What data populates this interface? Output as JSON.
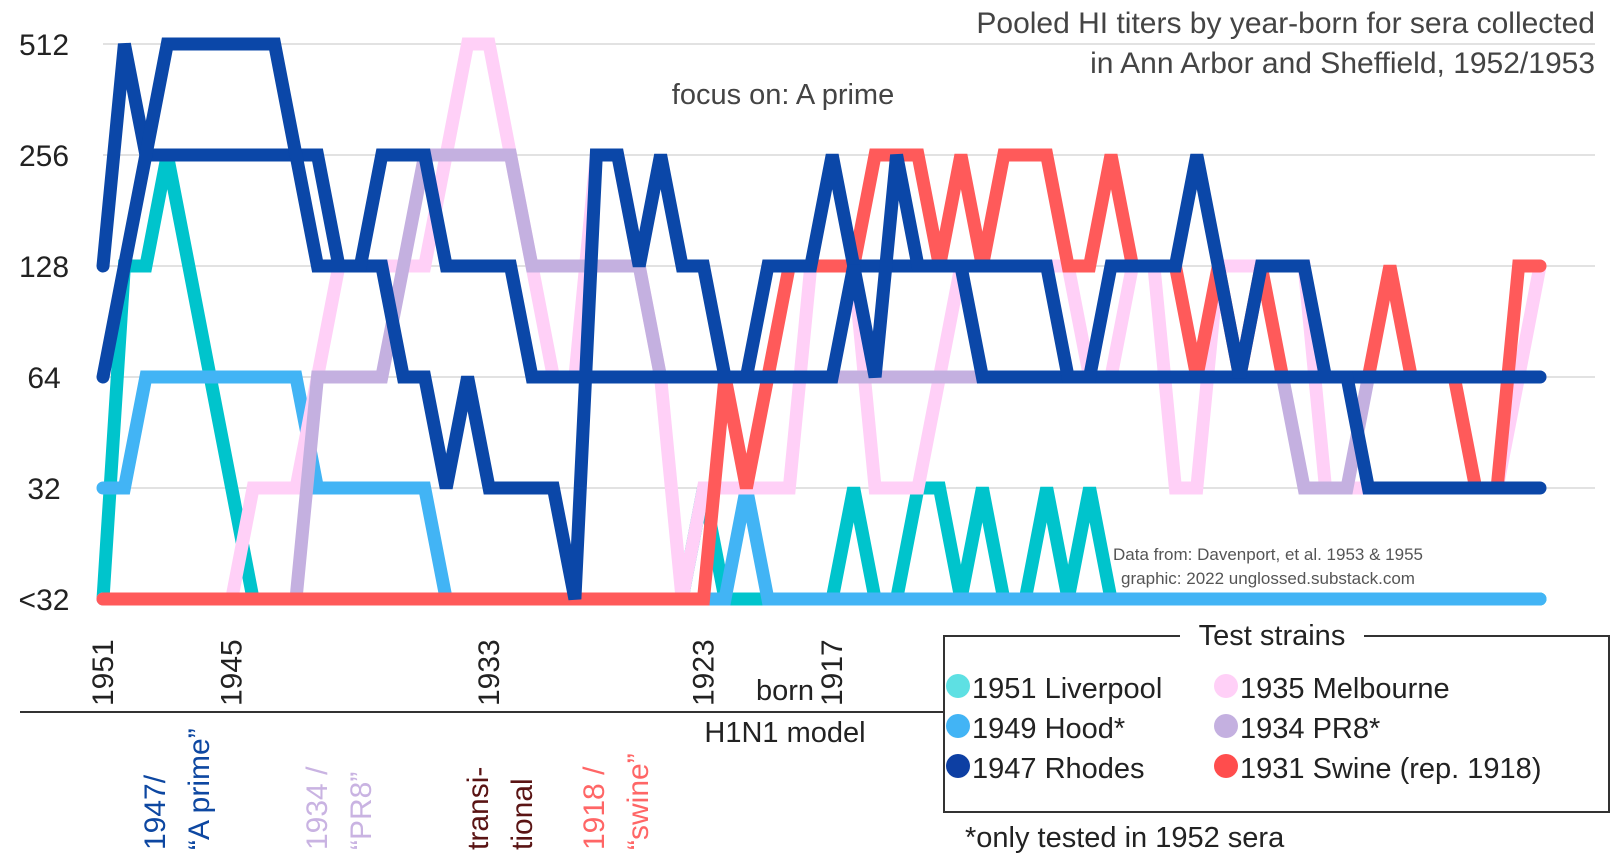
{
  "chart_data": {
    "type": "line",
    "title_lines": [
      "Pooled HI titers by year-born for sera collected",
      "in Ann Arbor and Sheffield, 1952/1953"
    ],
    "subtitle": "focus on: A prime",
    "ylabel": "",
    "xlabel": "born",
    "xlabel2": "H1N1 model",
    "y_scale": "log2",
    "y_ticks": [
      "<32",
      "32",
      "64",
      "128",
      "256",
      "512"
    ],
    "y_tick_values": [
      16,
      32,
      64,
      128,
      256,
      512
    ],
    "x_range": [
      1951,
      1884
    ],
    "x_tick_labels": [
      {
        "year": 1951,
        "label": "1951"
      },
      {
        "year": 1945,
        "label": "1945"
      },
      {
        "year": 1933,
        "label": "1933"
      },
      {
        "year": 1923,
        "label": "1923"
      },
      {
        "year": 1917,
        "label": "1917"
      }
    ],
    "grid": true,
    "legend_title": "Test strains",
    "legend_position": "bottom-right",
    "credit_lines": [
      "Data from: Davenport, et al. 1953 & 1955",
      "graphic: 2022 unglossed.substack.com"
    ],
    "footnote": "*only tested in 1952 sera",
    "era_labels": [
      {
        "lines": [
          "1947/",
          "“A prime”"
        ],
        "color": "#0d47a1"
      },
      {
        "lines": [
          "1934 /",
          "“PR8”"
        ],
        "color": "#c9b3e2"
      },
      {
        "lines": [
          "transi-",
          "tional"
        ],
        "color": "#5a1414"
      },
      {
        "lines": [
          "1918 /",
          "“swine”"
        ],
        "color": "#ff6666"
      }
    ],
    "series": [
      {
        "name": "1951 Liverpool",
        "color": "#00c4cc",
        "legend_color": "#5ee0e3",
        "x": [
          1951,
          1950,
          1949,
          1948,
          1947,
          1946,
          1945,
          1944,
          1943,
          1942,
          1941,
          1940,
          1939,
          1938,
          1937,
          1936,
          1935,
          1934,
          1933,
          1932,
          1931,
          1930,
          1929,
          1928,
          1927,
          1926,
          1925,
          1924,
          1923,
          1922,
          1921,
          1920,
          1919,
          1918,
          1917,
          1916,
          1915,
          1914,
          1913,
          1912,
          1911,
          1910,
          1909,
          1908,
          1907,
          1906,
          1905,
          1904,
          1903,
          1902,
          1901,
          1900,
          1899,
          1898,
          1897,
          1896,
          1895,
          1894,
          1893,
          1892,
          1891,
          1890,
          1889,
          1888,
          1887,
          1886,
          1885,
          1884
        ],
        "y": [
          16,
          128,
          128,
          256,
          128,
          64,
          32,
          16,
          16,
          16,
          16,
          16,
          16,
          16,
          16,
          16,
          16,
          16,
          16,
          16,
          16,
          16,
          16,
          16,
          16,
          16,
          16,
          16,
          32,
          16,
          16,
          16,
          16,
          16,
          16,
          32,
          16,
          16,
          32,
          32,
          16,
          32,
          16,
          16,
          32,
          16,
          32,
          16,
          16,
          16,
          16,
          16,
          16,
          16,
          16,
          16,
          16,
          16,
          16,
          16,
          16,
          16,
          16,
          16,
          16,
          16,
          16,
          16
        ]
      },
      {
        "name": "1949 Hood*",
        "color": "#42b4f5",
        "legend_color": "#42b4f5",
        "x": [
          1951,
          1950,
          1949,
          1948,
          1947,
          1946,
          1945,
          1944,
          1943,
          1942,
          1941,
          1940,
          1939,
          1938,
          1937,
          1936,
          1935,
          1934,
          1933,
          1932,
          1931,
          1930,
          1929,
          1928,
          1927,
          1926,
          1925,
          1924,
          1923,
          1922,
          1921,
          1920,
          1919,
          1918,
          1917,
          1916,
          1915,
          1914,
          1913,
          1912,
          1911,
          1910,
          1909,
          1908,
          1907,
          1906,
          1905,
          1904,
          1903,
          1902,
          1901,
          1900,
          1899,
          1898,
          1897,
          1896,
          1895,
          1894,
          1893,
          1892,
          1891,
          1890,
          1889,
          1888,
          1887,
          1886,
          1885,
          1884
        ],
        "y": [
          32,
          32,
          64,
          64,
          64,
          64,
          64,
          64,
          64,
          64,
          32,
          32,
          32,
          32,
          32,
          32,
          16,
          16,
          16,
          16,
          16,
          16,
          16,
          16,
          16,
          16,
          16,
          16,
          16,
          16,
          32,
          16,
          16,
          16,
          16,
          16,
          16,
          16,
          16,
          16,
          16,
          16,
          16,
          16,
          16,
          16,
          16,
          16,
          16,
          16,
          16,
          16,
          16,
          16,
          16,
          16,
          16,
          16,
          16,
          16,
          16,
          16,
          16,
          16,
          16,
          16,
          16,
          16
        ]
      },
      {
        "name": "1935 Melbourne",
        "color": "#ffd0f7",
        "legend_color": "#ffd0f7",
        "x": [
          1951,
          1950,
          1949,
          1948,
          1947,
          1946,
          1945,
          1944,
          1943,
          1942,
          1941,
          1940,
          1939,
          1938,
          1937,
          1936,
          1935,
          1934,
          1933,
          1932,
          1931,
          1930,
          1929,
          1928,
          1927,
          1926,
          1925,
          1924,
          1923,
          1922,
          1921,
          1920,
          1919,
          1918,
          1917,
          1916,
          1915,
          1914,
          1913,
          1912,
          1911,
          1910,
          1909,
          1908,
          1907,
          1906,
          1905,
          1904,
          1903,
          1902,
          1901,
          1900,
          1899,
          1898,
          1897,
          1896,
          1895,
          1894,
          1893,
          1892,
          1891,
          1890,
          1889,
          1888,
          1887,
          1886,
          1885,
          1884
        ],
        "y": [
          16,
          16,
          16,
          16,
          16,
          16,
          16,
          32,
          32,
          32,
          64,
          128,
          128,
          128,
          128,
          128,
          256,
          512,
          512,
          256,
          128,
          64,
          64,
          256,
          256,
          128,
          64,
          16,
          32,
          32,
          32,
          32,
          32,
          128,
          128,
          128,
          32,
          32,
          32,
          64,
          128,
          128,
          128,
          128,
          128,
          128,
          64,
          64,
          128,
          128,
          32,
          32,
          128,
          128,
          128,
          128,
          128,
          32,
          32,
          32,
          32,
          32,
          32,
          32,
          32,
          32,
          64,
          128
        ]
      },
      {
        "name": "1934 PR8*",
        "color": "#c4b0e0",
        "legend_color": "#c4b0e0",
        "x": [
          1951,
          1950,
          1949,
          1948,
          1947,
          1946,
          1945,
          1944,
          1943,
          1942,
          1941,
          1940,
          1939,
          1938,
          1937,
          1936,
          1935,
          1934,
          1933,
          1932,
          1931,
          1930,
          1929,
          1928,
          1927,
          1926,
          1925,
          1924,
          1923,
          1922,
          1921,
          1920,
          1919,
          1918,
          1917,
          1916,
          1915,
          1914,
          1913,
          1912,
          1911,
          1910,
          1909,
          1908,
          1907,
          1906,
          1905,
          1904,
          1903,
          1902,
          1901,
          1900,
          1899,
          1898,
          1897,
          1896,
          1895,
          1894,
          1893,
          1892,
          1891,
          1890,
          1889,
          1888,
          1887,
          1886,
          1885,
          1884
        ],
        "y": [
          16,
          16,
          16,
          16,
          16,
          16,
          16,
          16,
          16,
          16,
          64,
          64,
          64,
          64,
          128,
          256,
          256,
          256,
          256,
          256,
          128,
          128,
          128,
          128,
          128,
          128,
          64,
          64,
          64,
          64,
          64,
          64,
          64,
          64,
          64,
          64,
          64,
          64,
          64,
          64,
          64,
          64,
          64,
          64,
          64,
          64,
          64,
          64,
          64,
          64,
          64,
          64,
          64,
          64,
          64,
          64,
          32,
          32,
          32,
          64,
          64,
          64,
          64,
          64,
          64,
          64,
          64,
          64
        ]
      },
      {
        "name": "1931 Swine (rep. 1918)",
        "color": "#ff5a5a",
        "legend_color": "#ff4d4d",
        "x": [
          1951,
          1950,
          1949,
          1948,
          1947,
          1946,
          1945,
          1944,
          1943,
          1942,
          1941,
          1940,
          1939,
          1938,
          1937,
          1936,
          1935,
          1934,
          1933,
          1932,
          1931,
          1930,
          1929,
          1928,
          1927,
          1926,
          1925,
          1924,
          1923,
          1922,
          1921,
          1920,
          1919,
          1918,
          1917,
          1916,
          1915,
          1914,
          1913,
          1912,
          1911,
          1910,
          1909,
          1908,
          1907,
          1906,
          1905,
          1904,
          1903,
          1902,
          1901,
          1900,
          1899,
          1898,
          1897,
          1896,
          1895,
          1894,
          1893,
          1892,
          1891,
          1890,
          1889,
          1888,
          1887,
          1886,
          1885,
          1884
        ],
        "y": [
          16,
          16,
          16,
          16,
          16,
          16,
          16,
          16,
          16,
          16,
          16,
          16,
          16,
          16,
          16,
          16,
          16,
          16,
          16,
          16,
          16,
          16,
          16,
          16,
          16,
          16,
          16,
          16,
          16,
          64,
          32,
          64,
          128,
          128,
          128,
          128,
          256,
          256,
          256,
          128,
          256,
          128,
          256,
          256,
          256,
          128,
          128,
          256,
          128,
          128,
          128,
          64,
          128,
          64,
          128,
          64,
          64,
          64,
          64,
          64,
          128,
          64,
          64,
          64,
          32,
          32,
          128,
          128
        ]
      },
      {
        "name": "1947 Rhodes",
        "color": "#0b47a8",
        "legend_color": "#0d3fa3",
        "x": [
          1951,
          1950,
          1949,
          1948,
          1947,
          1946,
          1945,
          1944,
          1943,
          1942,
          1941,
          1940,
          1939,
          1938,
          1937,
          1936,
          1935,
          1934,
          1933,
          1932,
          1931,
          1930,
          1929,
          1928,
          1927,
          1926,
          1925,
          1924,
          1923,
          1922,
          1921,
          1920,
          1919,
          1918,
          1917,
          1916,
          1915,
          1914,
          1913,
          1912,
          1911,
          1910,
          1909,
          1908,
          1907,
          1906,
          1905,
          1904,
          1903,
          1902,
          1901,
          1900,
          1899,
          1898,
          1897,
          1896,
          1895,
          1894,
          1893,
          1892,
          1891,
          1890,
          1889,
          1888,
          1887,
          1886,
          1885,
          1884
        ],
        "y": [
          128,
          512,
          256,
          256,
          256,
          256,
          256,
          256,
          256,
          256,
          256,
          128,
          128,
          128,
          64,
          64,
          32,
          64,
          32,
          32,
          32,
          32,
          16,
          256,
          256,
          128,
          256,
          128,
          128,
          64,
          64,
          128,
          128,
          128,
          256,
          128,
          128,
          128,
          128,
          128,
          128,
          64,
          64,
          64,
          64,
          64,
          64,
          64,
          64,
          64,
          64,
          64,
          64,
          64,
          64,
          64,
          64,
          64,
          64,
          64,
          64,
          64,
          64,
          64,
          64,
          64,
          64,
          64
        ]
      },
      {
        "name": "1947 Rhodes (second trace)",
        "legend": false,
        "color": "#0b47a8",
        "x": [
          1951,
          1950,
          1949,
          1948,
          1947,
          1946,
          1945,
          1944,
          1943,
          1942,
          1941,
          1940,
          1939,
          1938,
          1937,
          1936,
          1935,
          1934,
          1933,
          1932,
          1931,
          1930,
          1929,
          1928,
          1927,
          1926,
          1925,
          1924,
          1923,
          1922,
          1921,
          1920,
          1919,
          1918,
          1917,
          1916,
          1915,
          1914,
          1913,
          1912,
          1911,
          1910,
          1909,
          1908,
          1907,
          1906,
          1905,
          1904,
          1903,
          1902,
          1901,
          1900,
          1899,
          1898,
          1897,
          1896,
          1895,
          1894,
          1893,
          1892,
          1891,
          1890,
          1889,
          1888,
          1887,
          1886,
          1885,
          1884
        ],
        "y": [
          64,
          128,
          256,
          512,
          512,
          512,
          512,
          512,
          512,
          256,
          128,
          128,
          128,
          256,
          256,
          256,
          128,
          128,
          128,
          128,
          64,
          64,
          64,
          64,
          64,
          64,
          64,
          64,
          64,
          64,
          64,
          64,
          64,
          64,
          64,
          128,
          64,
          256,
          128,
          128,
          128,
          128,
          128,
          128,
          128,
          64,
          64,
          128,
          128,
          128,
          128,
          256,
          128,
          64,
          128,
          128,
          128,
          64,
          64,
          32,
          32,
          32,
          32,
          32,
          32,
          32,
          32,
          32
        ]
      }
    ],
    "legend_order": [
      0,
      2,
      1,
      3,
      5,
      4
    ]
  }
}
